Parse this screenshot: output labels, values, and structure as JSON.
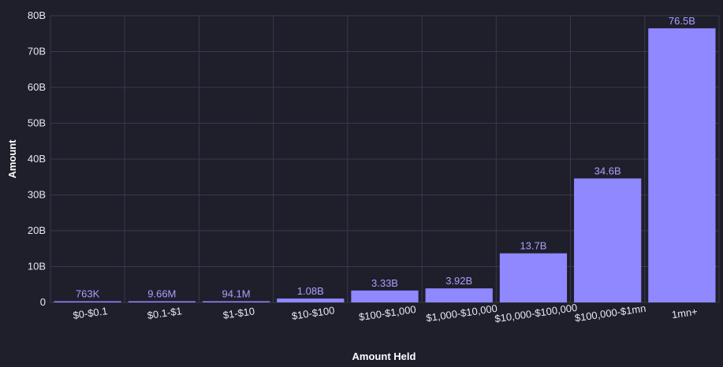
{
  "chart_data": {
    "type": "bar",
    "xlabel": "Amount Held",
    "ylabel": "Amount",
    "ylim": [
      0,
      80000000000
    ],
    "yticks": [
      {
        "value": 0,
        "label": "0"
      },
      {
        "value": 10000000000,
        "label": "10B"
      },
      {
        "value": 20000000000,
        "label": "20B"
      },
      {
        "value": 30000000000,
        "label": "30B"
      },
      {
        "value": 40000000000,
        "label": "40B"
      },
      {
        "value": 50000000000,
        "label": "50B"
      },
      {
        "value": 60000000000,
        "label": "60B"
      },
      {
        "value": 70000000000,
        "label": "70B"
      },
      {
        "value": 80000000000,
        "label": "80B"
      }
    ],
    "categories": [
      "$0-$0.1",
      "$0.1-$1",
      "$1-$10",
      "$10-$100",
      "$100-$1,000",
      "$1,000-$10,000",
      "$10,000-$100,000",
      "$100,000-$1mn",
      "1mn+"
    ],
    "values": [
      763000,
      9660000,
      94100000,
      1080000000,
      3330000000,
      3920000000,
      13700000000,
      34600000000,
      76500000000
    ],
    "data_labels": [
      "763K",
      "9.66M",
      "94.1M",
      "1.08B",
      "3.33B",
      "3.92B",
      "13.7B",
      "34.6B",
      "76.5B"
    ],
    "grid": true,
    "legend": "none",
    "colors": {
      "bar": "#8f88ff",
      "background": "#1f1e2b",
      "grid": "#3a394a",
      "label": "#a8a2ff"
    }
  }
}
